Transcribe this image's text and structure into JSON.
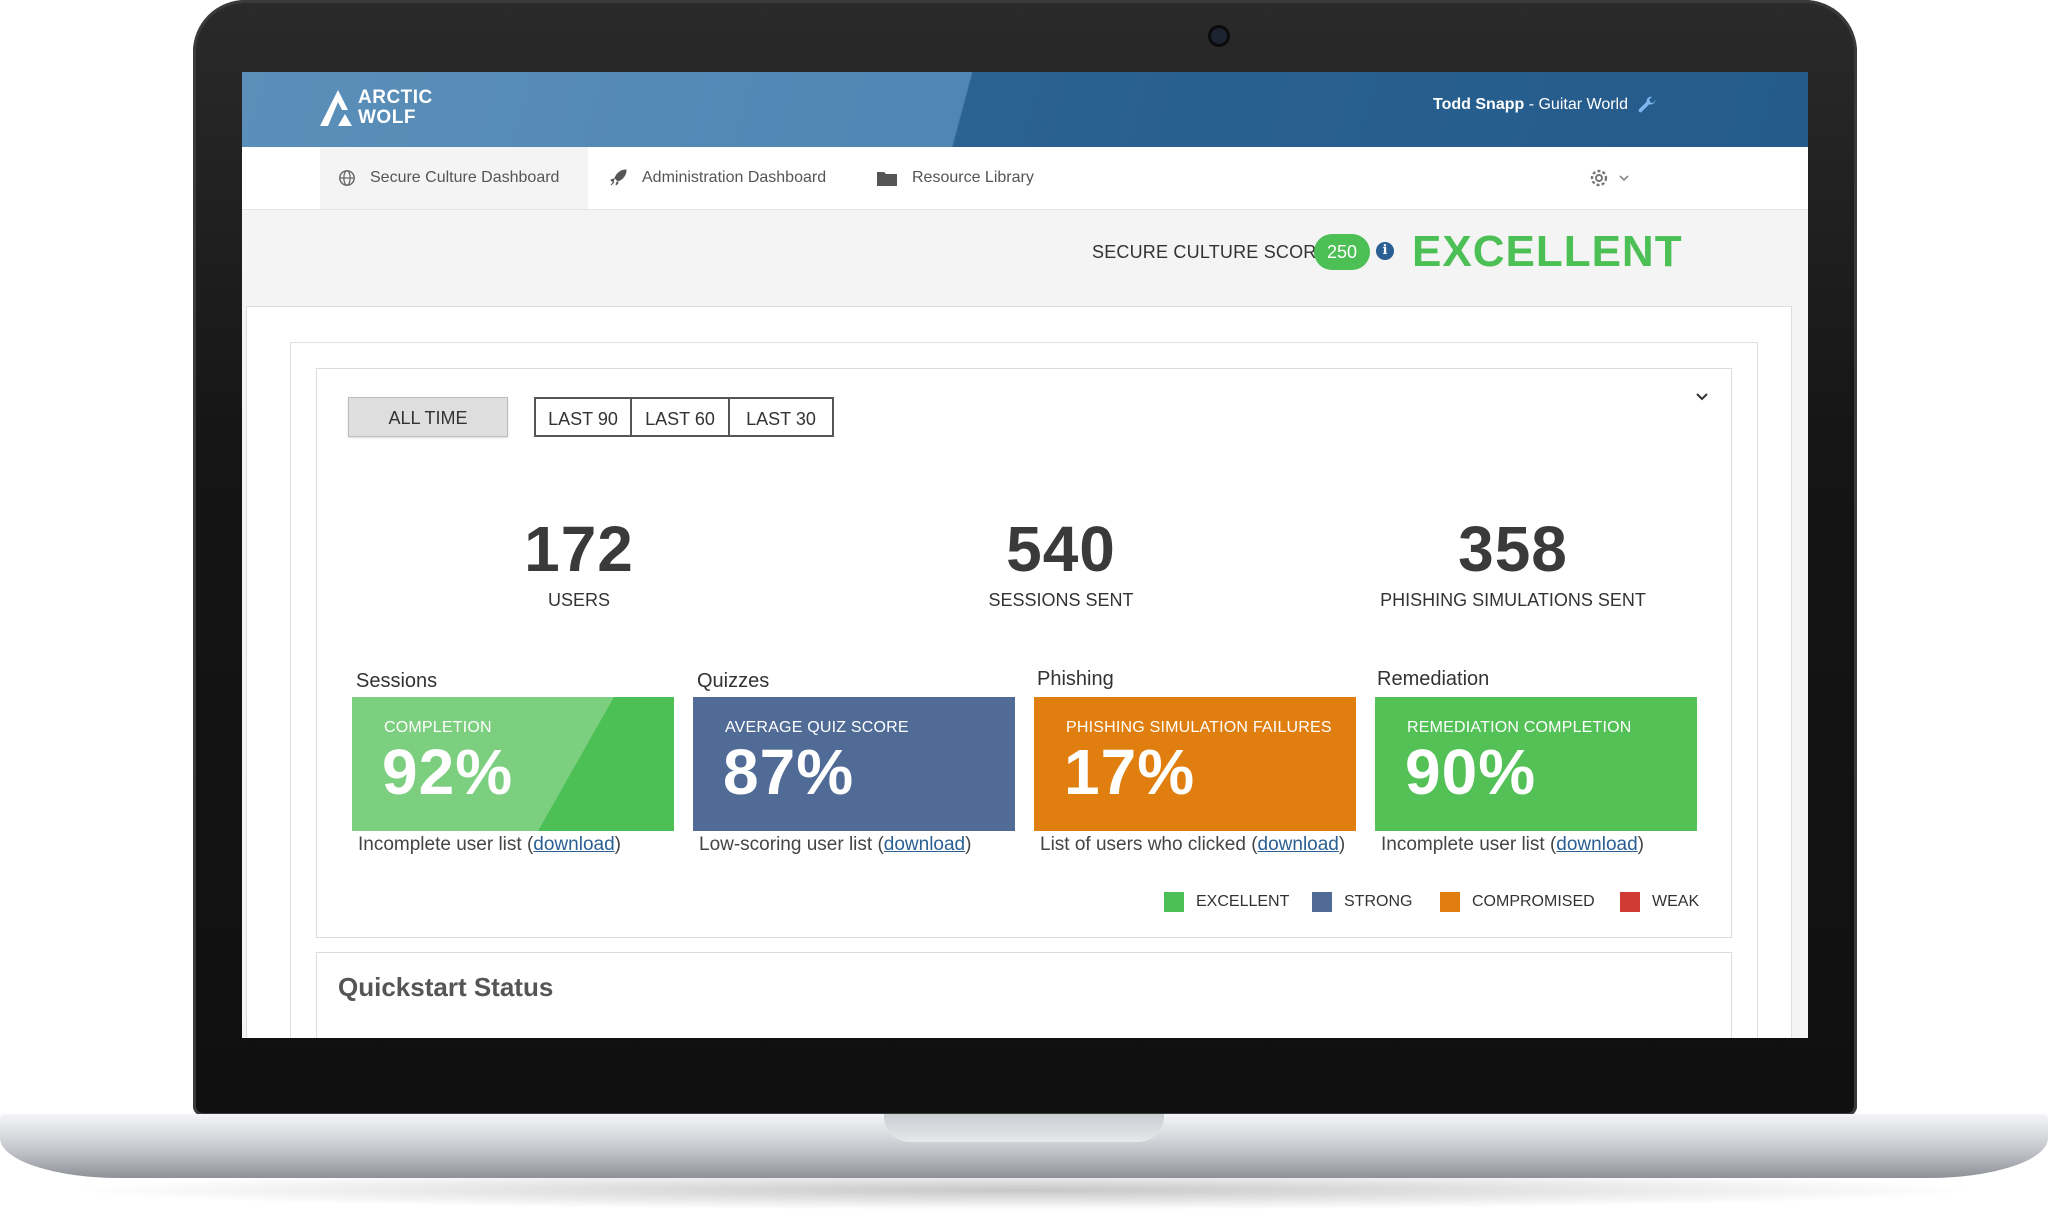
{
  "header": {
    "logo_line1": "ARCTIC",
    "logo_line2": "WOLF",
    "user_name": "Todd Snapp",
    "org": " - Guitar World"
  },
  "nav": {
    "tabs": [
      {
        "label": "Secure Culture Dashboard",
        "icon": "globe-icon",
        "active": true
      },
      {
        "label": "Administration Dashboard",
        "icon": "rocket-icon",
        "active": false
      },
      {
        "label": "Resource Library",
        "icon": "folder-icon",
        "active": false
      }
    ]
  },
  "score": {
    "label": "SECURE CULTURE SCORE:",
    "value": "250",
    "rating": "EXCELLENT"
  },
  "filters": {
    "all_time": "ALL TIME",
    "last90": "LAST 90",
    "last60": "LAST 60",
    "last30": "LAST 30"
  },
  "stats": [
    {
      "value": "172",
      "label": "USERS"
    },
    {
      "value": "540",
      "label": "SESSIONS SENT"
    },
    {
      "value": "358",
      "label": "PHISHING SIMULATIONS SENT"
    }
  ],
  "cards": [
    {
      "title": "Sessions",
      "caption": "COMPLETION",
      "value": "92%",
      "foot": "Incomplete user list (",
      "link": "download",
      "close": ")",
      "color": "#4cbf55"
    },
    {
      "title": "Quizzes",
      "caption": "AVERAGE QUIZ SCORE",
      "value": "87%",
      "foot": "Low-scoring user list (",
      "link": "download",
      "close": ")",
      "color": "#506c96"
    },
    {
      "title": "Phishing",
      "caption": "PHISHING SIMULATION  FAILURES",
      "value": "17%",
      "foot": "List of users who clicked (",
      "link": "download",
      "close": ")",
      "color": "#e07f10"
    },
    {
      "title": "Remediation",
      "caption": "REMEDIATION COMPLETION",
      "value": "90%",
      "foot": "Incomplete user list (",
      "link": "download",
      "close": ")",
      "color": "#54c157"
    }
  ],
  "legend": [
    {
      "label": "EXCELLENT",
      "color": "#4cbf55"
    },
    {
      "label": "STRONG",
      "color": "#506c96"
    },
    {
      "label": "COMPROMISED",
      "color": "#e07f10"
    },
    {
      "label": "WEAK",
      "color": "#d03c34"
    }
  ],
  "quickstart": {
    "title": "Quickstart Status"
  }
}
